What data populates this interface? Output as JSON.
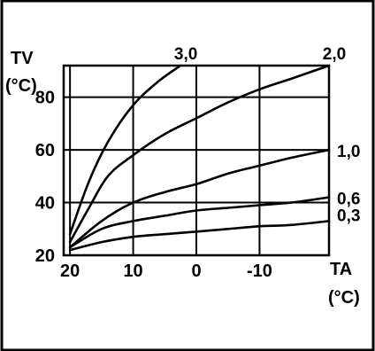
{
  "chart_data": {
    "type": "line",
    "title": "",
    "xlabel": "TA",
    "xunit": "(°C)",
    "ylabel": "TV",
    "yunit": "(°C)",
    "xlim": [
      21,
      -21
    ],
    "ylim": [
      20,
      92
    ],
    "x_ticks": [
      20,
      10,
      0,
      -10
    ],
    "x_tick_labels": [
      "20",
      "10",
      "0",
      "-10"
    ],
    "y_ticks": [
      20,
      40,
      60,
      80
    ],
    "y_tick_labels": [
      "20",
      "40",
      "60",
      "80"
    ],
    "grid": true,
    "x_grid": [
      20,
      10,
      0,
      -10
    ],
    "y_grid": [
      40,
      60,
      80
    ],
    "series": [
      {
        "name": "3,0",
        "points": [
          [
            20,
            28
          ],
          [
            17,
            48
          ],
          [
            14,
            63
          ],
          [
            10,
            77
          ],
          [
            6,
            86
          ],
          [
            2.5,
            92
          ]
        ]
      },
      {
        "name": "2,0",
        "points": [
          [
            20,
            25
          ],
          [
            17,
            38
          ],
          [
            14,
            50
          ],
          [
            10,
            58
          ],
          [
            5,
            66
          ],
          [
            0,
            72
          ],
          [
            -5,
            78
          ],
          [
            -10,
            83
          ],
          [
            -15,
            87
          ],
          [
            -21,
            92
          ]
        ]
      },
      {
        "name": "1,0",
        "points": [
          [
            20,
            23
          ],
          [
            15,
            33
          ],
          [
            10,
            40
          ],
          [
            5,
            44
          ],
          [
            0,
            47
          ],
          [
            -5,
            51
          ],
          [
            -10,
            54
          ],
          [
            -15,
            57
          ],
          [
            -21,
            60
          ]
        ]
      },
      {
        "name": "0,6",
        "points": [
          [
            20,
            23
          ],
          [
            15,
            30
          ],
          [
            10,
            33
          ],
          [
            5,
            35
          ],
          [
            0,
            37
          ],
          [
            -5,
            38
          ],
          [
            -10,
            39
          ],
          [
            -15,
            40
          ],
          [
            -21,
            42
          ]
        ]
      },
      {
        "name": "0,3",
        "points": [
          [
            20,
            22
          ],
          [
            15,
            25
          ],
          [
            10,
            27
          ],
          [
            5,
            28
          ],
          [
            0,
            29
          ],
          [
            -5,
            30
          ],
          [
            -10,
            31
          ],
          [
            -15,
            31.5
          ],
          [
            -21,
            33
          ]
        ]
      }
    ]
  }
}
